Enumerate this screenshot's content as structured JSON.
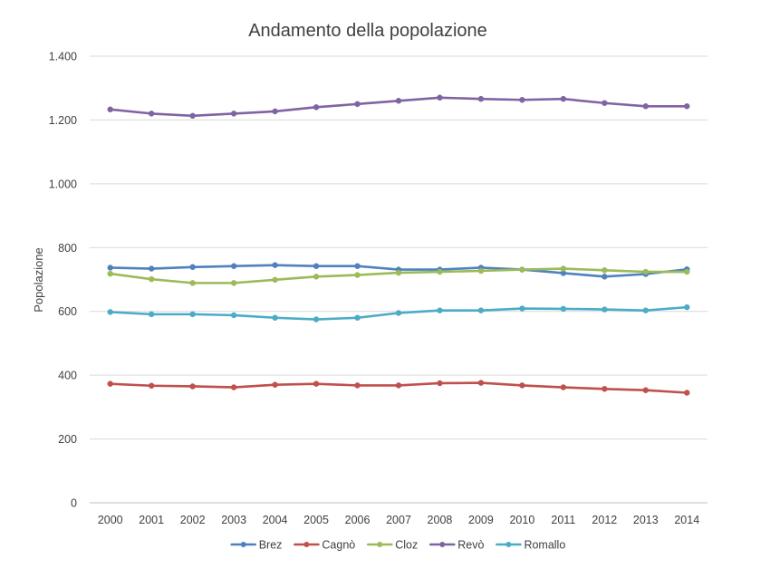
{
  "chart_data": {
    "type": "line",
    "title": "Andamento della popolazione",
    "xlabel": "",
    "ylabel": "Popolazione",
    "x": [
      2000,
      2001,
      2002,
      2003,
      2004,
      2005,
      2006,
      2007,
      2008,
      2009,
      2010,
      2011,
      2012,
      2013,
      2014
    ],
    "ylim": [
      0,
      1400
    ],
    "yticks": [
      0,
      200,
      400,
      600,
      800,
      1000,
      1200,
      1400
    ],
    "ytick_labels": [
      "0",
      "200",
      "400",
      "600",
      "800",
      "1.000",
      "1.200",
      "1.400"
    ],
    "grid": true,
    "legend_position": "bottom",
    "series": [
      {
        "name": "Brez",
        "color": "#4F81BD",
        "values": [
          737,
          734,
          739,
          742,
          745,
          742,
          742,
          731,
          731,
          737,
          731,
          720,
          709,
          717,
          732
        ]
      },
      {
        "name": "Cagnò",
        "color": "#C0504D",
        "values": [
          373,
          367,
          365,
          362,
          370,
          373,
          368,
          368,
          375,
          376,
          368,
          362,
          357,
          353,
          345
        ]
      },
      {
        "name": "Cloz",
        "color": "#9BBB59",
        "values": [
          718,
          701,
          689,
          689,
          699,
          709,
          714,
          721,
          724,
          727,
          731,
          734,
          729,
          724,
          724
        ]
      },
      {
        "name": "Revò",
        "color": "#8064A2",
        "values": [
          1233,
          1220,
          1213,
          1220,
          1227,
          1240,
          1250,
          1260,
          1270,
          1266,
          1263,
          1266,
          1253,
          1243,
          1243
        ]
      },
      {
        "name": "Romallo",
        "color": "#4BACC6",
        "values": [
          598,
          591,
          591,
          588,
          580,
          575,
          580,
          595,
          603,
          603,
          609,
          608,
          606,
          603,
          613
        ]
      }
    ]
  }
}
